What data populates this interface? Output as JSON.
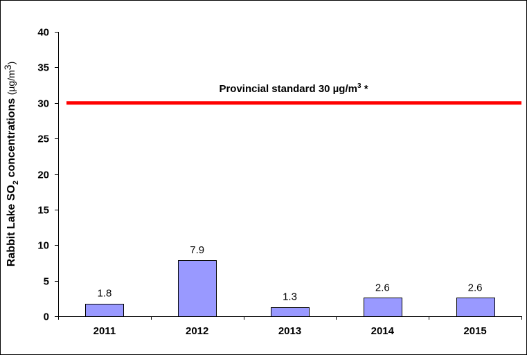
{
  "chart_data": {
    "type": "bar",
    "categories": [
      "2011",
      "2012",
      "2013",
      "2014",
      "2015"
    ],
    "values": [
      1.8,
      7.9,
      1.3,
      2.6,
      2.6
    ],
    "data_labels": [
      "1.8",
      "7.9",
      "1.3",
      "2.6",
      "2.6"
    ],
    "ylim": [
      0,
      40
    ],
    "yticks": [
      0,
      5,
      10,
      15,
      20,
      25,
      30,
      35,
      40
    ],
    "ylabel": {
      "main_before_sub": "Rabbit Lake SO",
      "subscript": "2",
      "main_after_sub": " concentrations ",
      "unit_before_sup": "(µg/m",
      "unit_sup": "3",
      "unit_after_sup": ")"
    },
    "grid": false,
    "bar_color": "#9999ff",
    "reference_line": {
      "value": 30,
      "color": "#ff0000",
      "label_before_sup": "Provincial standard 30 µg/m",
      "label_sup": "3",
      "label_after_sup": " *"
    }
  }
}
